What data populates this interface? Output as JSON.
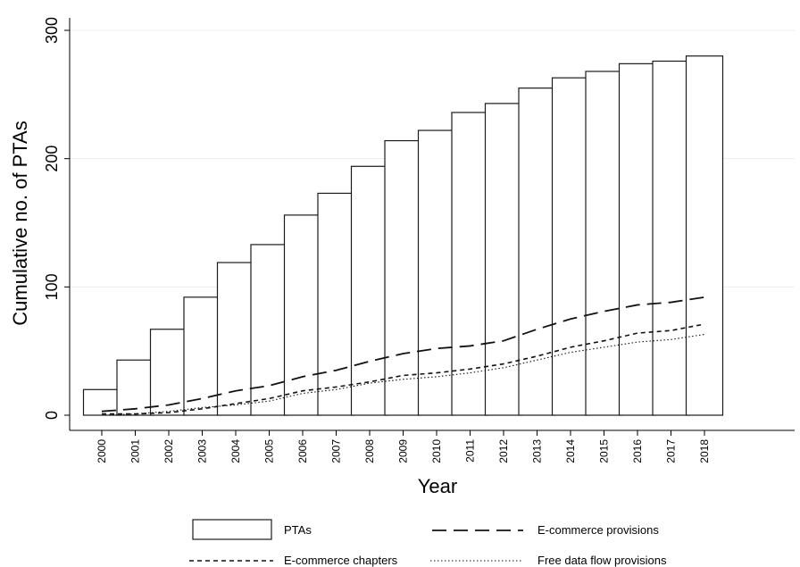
{
  "chart_data": {
    "type": "bar",
    "xlabel": "Year",
    "ylabel": "Cumulative no. of PTAs",
    "ylim": [
      0,
      300
    ],
    "yticks": [
      0,
      100,
      200,
      300
    ],
    "grid": true,
    "legend_position": "bottom",
    "categories": [
      "2000",
      "2001",
      "2002",
      "2003",
      "2004",
      "2005",
      "2006",
      "2007",
      "2008",
      "2009",
      "2010",
      "2011",
      "2012",
      "2013",
      "2014",
      "2015",
      "2016",
      "2017",
      "2018"
    ],
    "series": [
      {
        "name": "PTAs",
        "kind": "bar",
        "values": [
          20,
          43,
          67,
          92,
          119,
          133,
          156,
          173,
          194,
          214,
          222,
          236,
          243,
          255,
          263,
          268,
          274,
          276,
          280
        ]
      },
      {
        "name": "E-commerce provisions",
        "kind": "line",
        "dash": "long-dash",
        "values": [
          3,
          5,
          8,
          13,
          19,
          23,
          30,
          35,
          42,
          48,
          52,
          54,
          58,
          67,
          75,
          81,
          86,
          88,
          92
        ]
      },
      {
        "name": "E-commerce chapters",
        "kind": "line",
        "dash": "short-dash",
        "values": [
          1,
          1,
          2,
          5,
          9,
          13,
          19,
          22,
          26,
          31,
          33,
          36,
          40,
          46,
          53,
          58,
          64,
          66,
          71
        ]
      },
      {
        "name": "Free data flow provisions",
        "kind": "line",
        "dash": "dotted",
        "values": [
          0,
          1,
          3,
          6,
          8,
          11,
          17,
          20,
          25,
          28,
          30,
          33,
          37,
          43,
          49,
          53,
          57,
          59,
          63
        ]
      }
    ]
  }
}
